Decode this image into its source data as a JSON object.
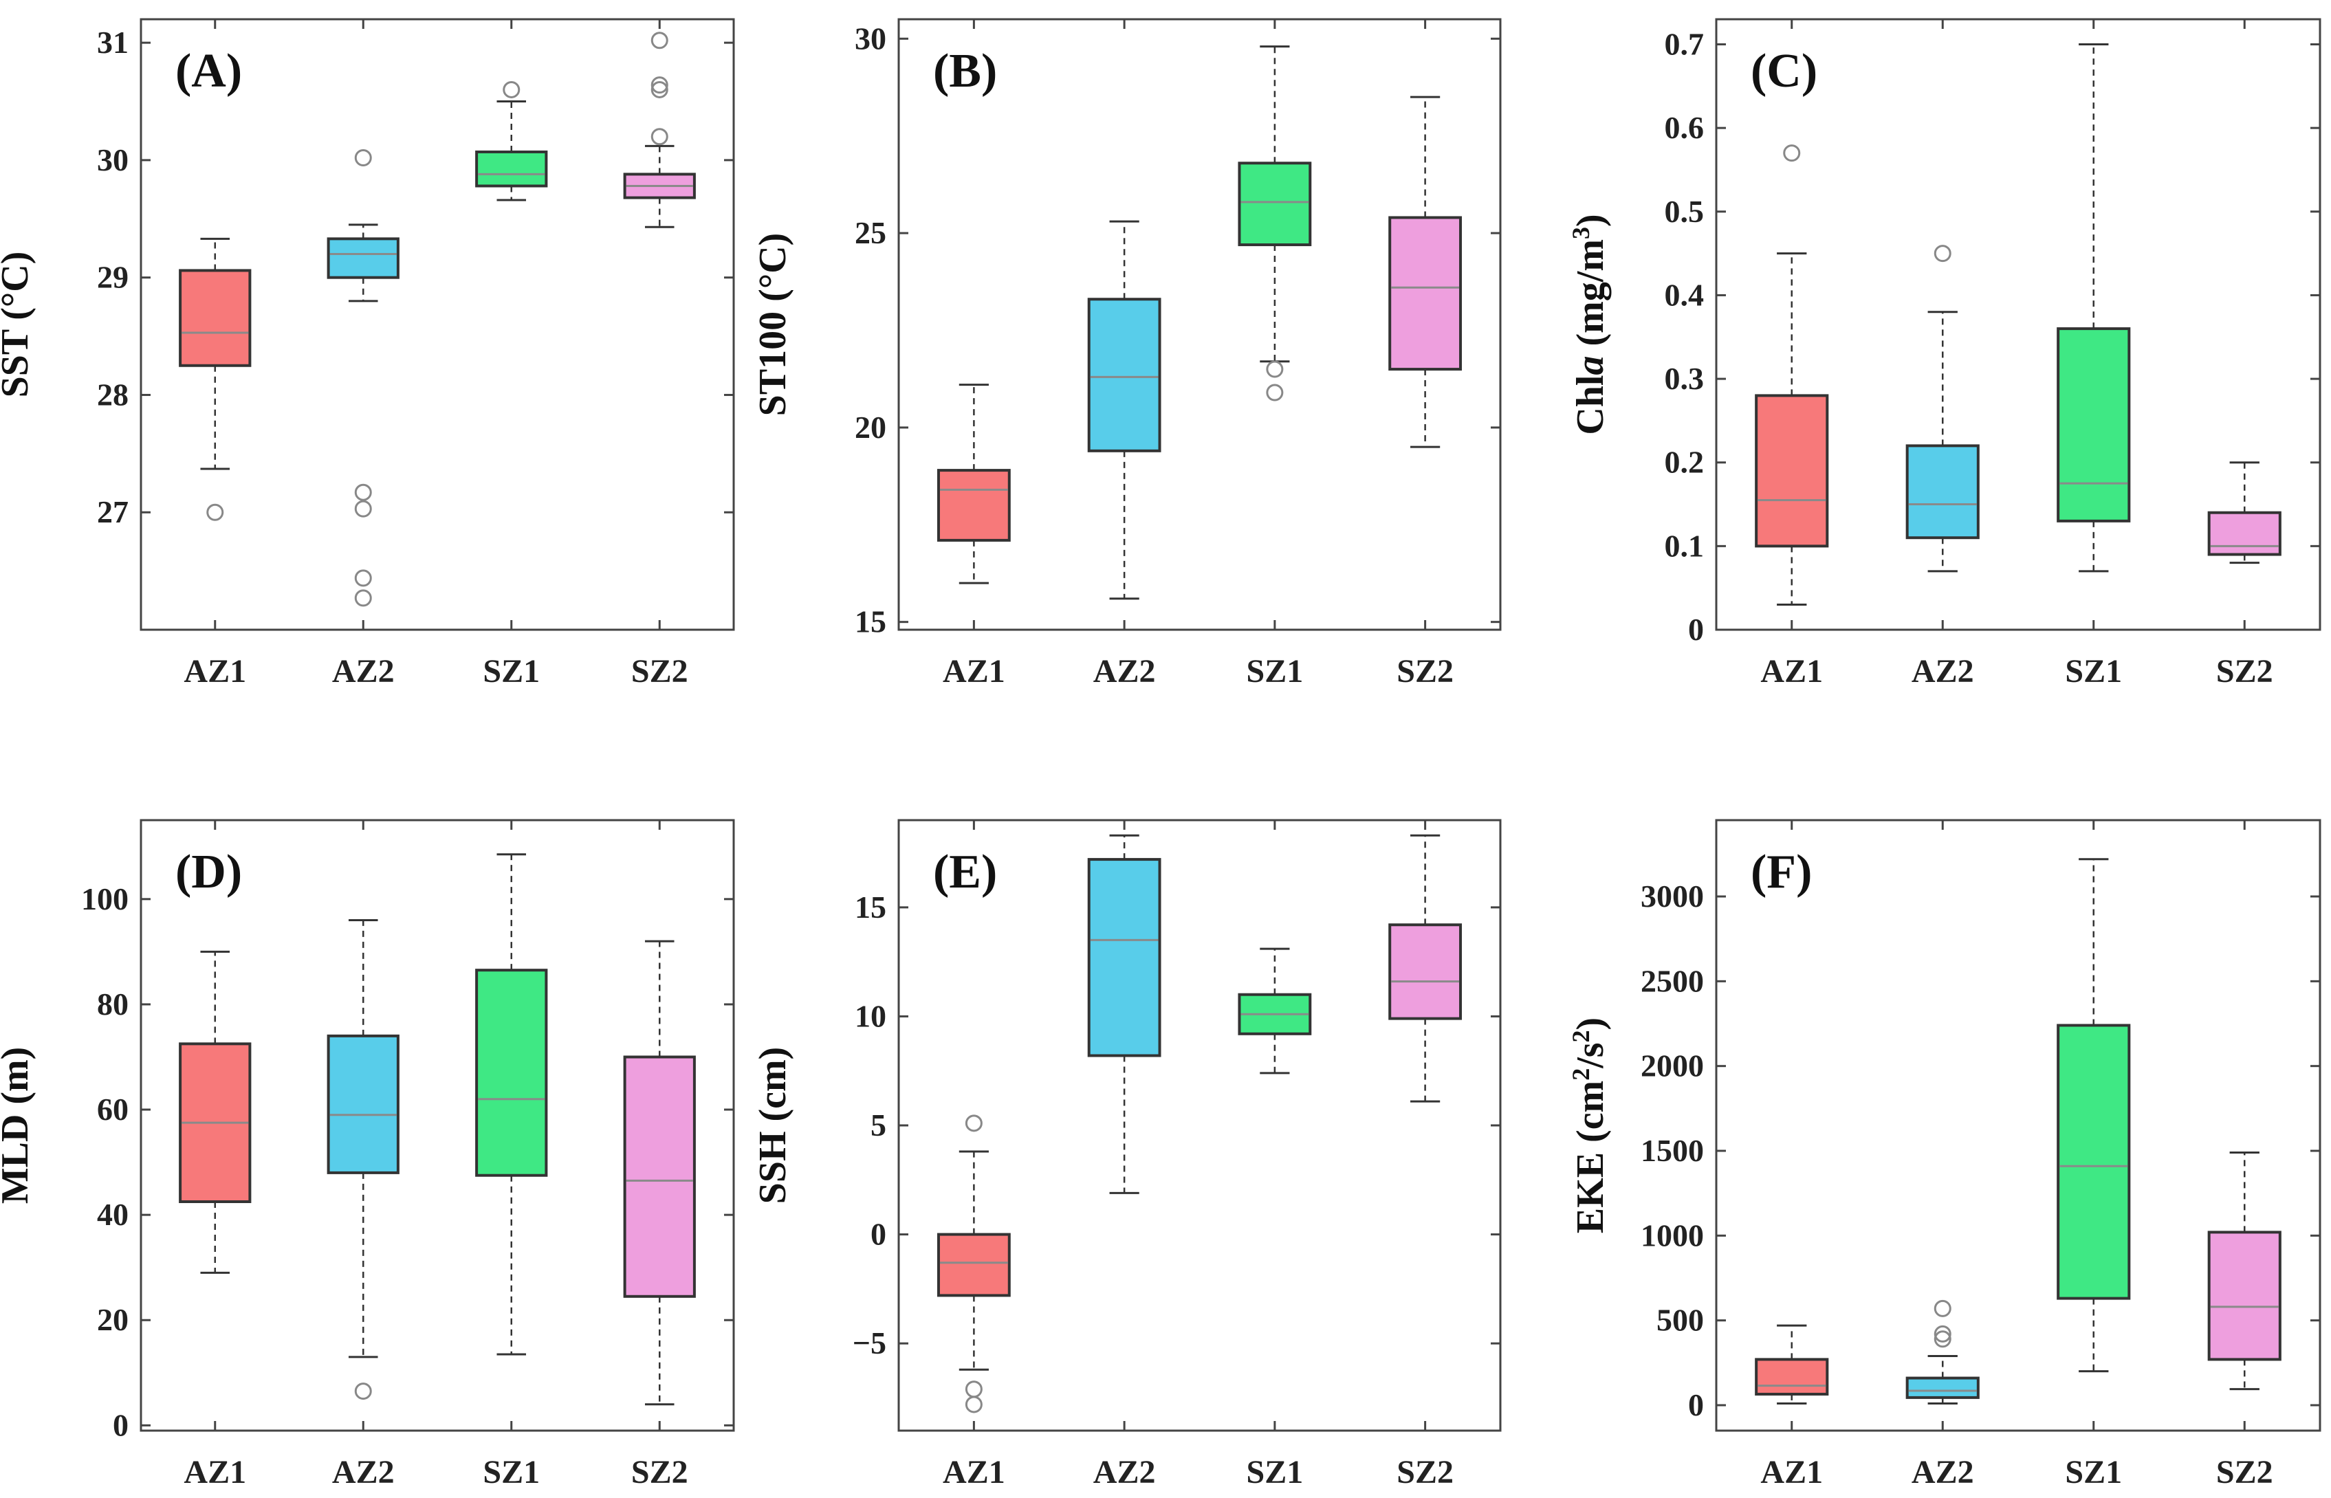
{
  "colors": {
    "AZ1": "#f7797a",
    "AZ2": "#58cdea",
    "SZ1": "#3fe884",
    "SZ2": "#ee9fde",
    "median": "#8a8a8a",
    "outline": "#333333",
    "outlier": "#888888"
  },
  "chart_data": [
    {
      "type": "box",
      "panel_label": "(A)",
      "ylabel": "SST (°C)",
      "categories": [
        "AZ1",
        "AZ2",
        "SZ1",
        "SZ2"
      ],
      "ylim": [
        26.0,
        31.2
      ],
      "yticks": [
        27,
        28,
        29,
        30,
        31
      ],
      "boxes": [
        {
          "name": "AZ1",
          "whisker_low": 27.37,
          "q1": 28.25,
          "median": 28.53,
          "q3": 29.06,
          "whisker_high": 29.33,
          "outliers": [
            27.0
          ]
        },
        {
          "name": "AZ2",
          "whisker_low": 28.8,
          "q1": 29.0,
          "median": 29.2,
          "q3": 29.33,
          "whisker_high": 29.45,
          "outliers": [
            30.02,
            27.17,
            27.03,
            26.44,
            26.27
          ]
        },
        {
          "name": "SZ1",
          "whisker_low": 29.66,
          "q1": 29.78,
          "median": 29.88,
          "q3": 30.07,
          "whisker_high": 30.5,
          "outliers": [
            30.6
          ]
        },
        {
          "name": "SZ2",
          "whisker_low": 29.43,
          "q1": 29.68,
          "median": 29.78,
          "q3": 29.88,
          "whisker_high": 30.12,
          "outliers": [
            31.02,
            30.64,
            30.6,
            30.2
          ]
        }
      ]
    },
    {
      "type": "box",
      "panel_label": "(B)",
      "ylabel": "ST100 (°C)",
      "categories": [
        "AZ1",
        "AZ2",
        "SZ1",
        "SZ2"
      ],
      "ylim": [
        14.8,
        30.5
      ],
      "yticks": [
        15,
        20,
        25,
        30
      ],
      "boxes": [
        {
          "name": "AZ1",
          "whisker_low": 16.0,
          "q1": 17.1,
          "median": 18.4,
          "q3": 18.9,
          "whisker_high": 21.1,
          "outliers": []
        },
        {
          "name": "AZ2",
          "whisker_low": 15.6,
          "q1": 19.4,
          "median": 21.3,
          "q3": 23.3,
          "whisker_high": 25.3,
          "outliers": []
        },
        {
          "name": "SZ1",
          "whisker_low": 21.7,
          "q1": 24.7,
          "median": 25.8,
          "q3": 26.8,
          "whisker_high": 29.8,
          "outliers": [
            21.5,
            20.9
          ]
        },
        {
          "name": "SZ2",
          "whisker_low": 19.5,
          "q1": 21.5,
          "median": 23.6,
          "q3": 25.4,
          "whisker_high": 28.5,
          "outliers": []
        }
      ]
    },
    {
      "type": "box",
      "panel_label": "(C)",
      "ylabel": "Chla (mg/m3)",
      "categories": [
        "AZ1",
        "AZ2",
        "SZ1",
        "SZ2"
      ],
      "ylim": [
        0,
        0.73
      ],
      "yticks": [
        0,
        0.1,
        0.2,
        0.3,
        0.4,
        0.5,
        0.6,
        0.7
      ],
      "boxes": [
        {
          "name": "AZ1",
          "whisker_low": 0.03,
          "q1": 0.1,
          "median": 0.155,
          "q3": 0.28,
          "whisker_high": 0.45,
          "outliers": [
            0.57
          ]
        },
        {
          "name": "AZ2",
          "whisker_low": 0.07,
          "q1": 0.11,
          "median": 0.15,
          "q3": 0.22,
          "whisker_high": 0.38,
          "outliers": [
            0.45
          ]
        },
        {
          "name": "SZ1",
          "whisker_low": 0.07,
          "q1": 0.13,
          "median": 0.175,
          "q3": 0.36,
          "whisker_high": 0.7,
          "outliers": []
        },
        {
          "name": "SZ2",
          "whisker_low": 0.08,
          "q1": 0.09,
          "median": 0.1,
          "q3": 0.14,
          "whisker_high": 0.2,
          "outliers": []
        }
      ]
    },
    {
      "type": "box",
      "panel_label": "(D)",
      "ylabel": "MLD (m)",
      "categories": [
        "AZ1",
        "AZ2",
        "SZ1",
        "SZ2"
      ],
      "ylim": [
        -1,
        115
      ],
      "yticks": [
        0,
        20,
        40,
        60,
        80,
        100
      ],
      "boxes": [
        {
          "name": "AZ1",
          "whisker_low": 29,
          "q1": 42.5,
          "median": 57.5,
          "q3": 72.5,
          "whisker_high": 90,
          "outliers": []
        },
        {
          "name": "AZ2",
          "whisker_low": 13,
          "q1": 48,
          "median": 59,
          "q3": 74,
          "whisker_high": 96,
          "outliers": [
            6.5
          ]
        },
        {
          "name": "SZ1",
          "whisker_low": 13.5,
          "q1": 47.5,
          "median": 62,
          "q3": 86.5,
          "whisker_high": 108.5,
          "outliers": []
        },
        {
          "name": "SZ2",
          "whisker_low": 4,
          "q1": 24.5,
          "median": 46.5,
          "q3": 70,
          "whisker_high": 92,
          "outliers": []
        }
      ]
    },
    {
      "type": "box",
      "panel_label": "(E)",
      "ylabel": "SSH (cm)",
      "categories": [
        "AZ1",
        "AZ2",
        "SZ1",
        "SZ2"
      ],
      "ylim": [
        -9,
        19
      ],
      "yticks": [
        -5,
        0,
        5,
        10,
        15
      ],
      "boxes": [
        {
          "name": "AZ1",
          "whisker_low": -6.2,
          "q1": -2.8,
          "median": -1.3,
          "q3": 0.0,
          "whisker_high": 3.8,
          "outliers": [
            5.1,
            -7.1,
            -7.8
          ]
        },
        {
          "name": "AZ2",
          "whisker_low": 1.9,
          "q1": 8.2,
          "median": 13.5,
          "q3": 17.2,
          "whisker_high": 18.3,
          "outliers": []
        },
        {
          "name": "SZ1",
          "whisker_low": 7.4,
          "q1": 9.2,
          "median": 10.1,
          "q3": 11.0,
          "whisker_high": 13.1,
          "outliers": []
        },
        {
          "name": "SZ2",
          "whisker_low": 6.1,
          "q1": 9.9,
          "median": 11.6,
          "q3": 14.2,
          "whisker_high": 18.3,
          "outliers": []
        }
      ]
    },
    {
      "type": "box",
      "panel_label": "(F)",
      "ylabel": "EKE (cm2/s2)",
      "categories": [
        "AZ1",
        "AZ2",
        "SZ1",
        "SZ2"
      ],
      "ylim": [
        -150,
        3450
      ],
      "yticks": [
        0,
        500,
        1000,
        1500,
        2000,
        2500,
        3000
      ],
      "boxes": [
        {
          "name": "AZ1",
          "whisker_low": 10,
          "q1": 65,
          "median": 115,
          "q3": 270,
          "whisker_high": 470,
          "outliers": []
        },
        {
          "name": "AZ2",
          "whisker_low": 10,
          "q1": 45,
          "median": 85,
          "q3": 160,
          "whisker_high": 290,
          "outliers": [
            570,
            420,
            390
          ]
        },
        {
          "name": "SZ1",
          "whisker_low": 200,
          "q1": 630,
          "median": 1410,
          "q3": 2240,
          "whisker_high": 3220,
          "outliers": []
        },
        {
          "name": "SZ2",
          "whisker_low": 95,
          "q1": 270,
          "median": 580,
          "q3": 1020,
          "whisker_high": 1490,
          "outliers": []
        }
      ]
    }
  ]
}
